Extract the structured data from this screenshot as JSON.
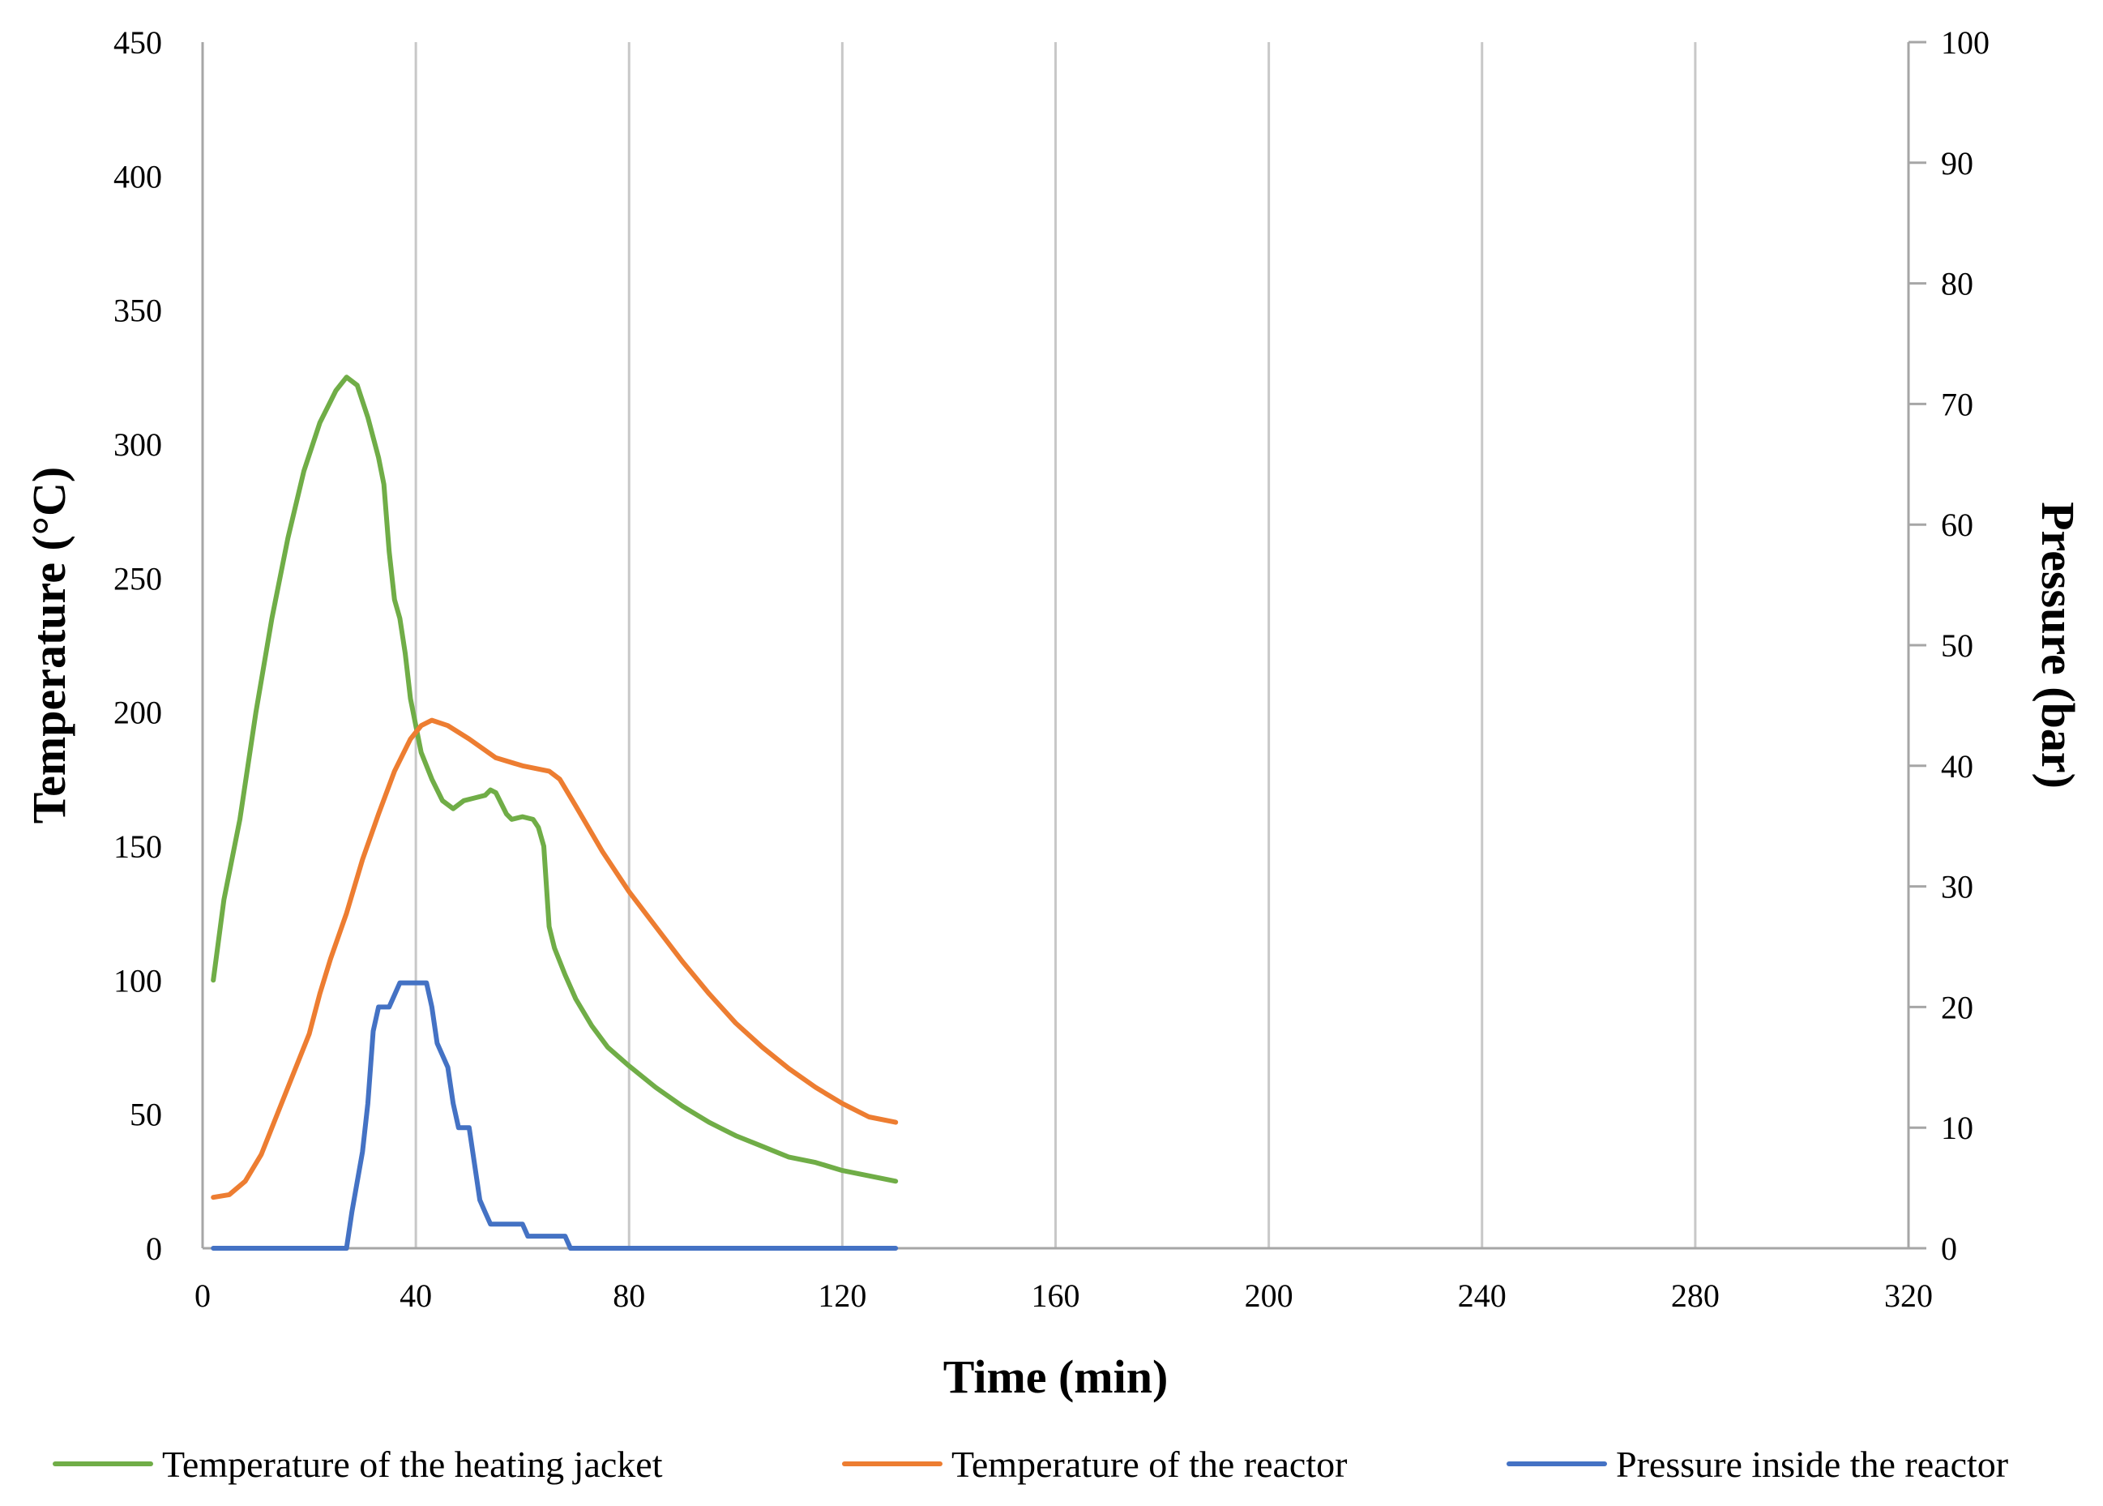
{
  "chart_data": {
    "type": "line",
    "title": "",
    "xlabel": "Time (min)",
    "ylabel": "Temperature (°C)",
    "y2label": "Pressure (bar)",
    "xlim": [
      0,
      320
    ],
    "ylim": [
      0,
      450
    ],
    "y2lim": [
      0,
      100
    ],
    "x_ticks": [
      0,
      40,
      80,
      120,
      160,
      200,
      240,
      280,
      320
    ],
    "y_ticks": [
      0,
      50,
      100,
      150,
      200,
      250,
      300,
      350,
      400,
      450
    ],
    "y2_ticks": [
      0,
      10,
      20,
      30,
      40,
      50,
      60,
      70,
      80,
      90,
      100
    ],
    "grid": "vertical",
    "legend_position": "bottom",
    "series": [
      {
        "name": "Temperature of the heating jacket",
        "axis": "left",
        "color": "#70ad47",
        "points": [
          [
            2,
            100
          ],
          [
            4,
            130
          ],
          [
            7,
            160
          ],
          [
            10,
            200
          ],
          [
            13,
            235
          ],
          [
            16,
            265
          ],
          [
            19,
            290
          ],
          [
            22,
            308
          ],
          [
            25,
            320
          ],
          [
            27,
            325
          ],
          [
            29,
            322
          ],
          [
            31,
            310
          ],
          [
            33,
            295
          ],
          [
            34,
            285
          ],
          [
            35,
            260
          ],
          [
            36,
            242
          ],
          [
            37,
            235
          ],
          [
            38,
            222
          ],
          [
            39,
            205
          ],
          [
            40,
            195
          ],
          [
            41,
            185
          ],
          [
            43,
            175
          ],
          [
            45,
            167
          ],
          [
            47,
            164
          ],
          [
            49,
            167
          ],
          [
            51,
            168
          ],
          [
            53,
            169
          ],
          [
            54,
            171
          ],
          [
            55,
            170
          ],
          [
            57,
            162
          ],
          [
            58,
            160
          ],
          [
            60,
            161
          ],
          [
            62,
            160
          ],
          [
            63,
            157
          ],
          [
            64,
            150
          ],
          [
            65,
            120
          ],
          [
            66,
            112
          ],
          [
            68,
            102
          ],
          [
            70,
            93
          ],
          [
            73,
            83
          ],
          [
            76,
            75
          ],
          [
            80,
            68
          ],
          [
            85,
            60
          ],
          [
            90,
            53
          ],
          [
            95,
            47
          ],
          [
            100,
            42
          ],
          [
            105,
            38
          ],
          [
            110,
            34
          ],
          [
            115,
            32
          ],
          [
            120,
            29
          ],
          [
            125,
            27
          ],
          [
            130,
            25
          ]
        ]
      },
      {
        "name": "Temperature of the reactor",
        "axis": "left",
        "color": "#ed7d31",
        "points": [
          [
            2,
            19
          ],
          [
            5,
            20
          ],
          [
            8,
            25
          ],
          [
            11,
            35
          ],
          [
            14,
            50
          ],
          [
            17,
            65
          ],
          [
            20,
            80
          ],
          [
            22,
            95
          ],
          [
            24,
            108
          ],
          [
            27,
            125
          ],
          [
            30,
            145
          ],
          [
            33,
            162
          ],
          [
            36,
            178
          ],
          [
            39,
            190
          ],
          [
            41,
            195
          ],
          [
            43,
            197
          ],
          [
            46,
            195
          ],
          [
            50,
            190
          ],
          [
            55,
            183
          ],
          [
            60,
            180
          ],
          [
            65,
            178
          ],
          [
            67,
            175
          ],
          [
            70,
            165
          ],
          [
            75,
            148
          ],
          [
            80,
            133
          ],
          [
            85,
            120
          ],
          [
            90,
            107
          ],
          [
            95,
            95
          ],
          [
            100,
            84
          ],
          [
            105,
            75
          ],
          [
            110,
            67
          ],
          [
            115,
            60
          ],
          [
            120,
            54
          ],
          [
            125,
            49
          ],
          [
            130,
            47
          ]
        ]
      },
      {
        "name": "Pressure inside the reactor",
        "axis": "right",
        "color": "#4472c4",
        "points": [
          [
            2,
            0
          ],
          [
            26,
            0
          ],
          [
            27,
            0
          ],
          [
            28,
            3
          ],
          [
            30,
            8
          ],
          [
            31,
            12
          ],
          [
            32,
            18
          ],
          [
            33,
            20
          ],
          [
            34,
            20
          ],
          [
            35,
            20
          ],
          [
            36,
            21
          ],
          [
            37,
            22
          ],
          [
            39,
            22
          ],
          [
            40,
            22
          ],
          [
            41,
            22
          ],
          [
            42,
            22
          ],
          [
            43,
            20
          ],
          [
            44,
            17
          ],
          [
            46,
            15
          ],
          [
            47,
            12
          ],
          [
            48,
            10
          ],
          [
            50,
            10
          ],
          [
            51,
            7
          ],
          [
            52,
            4
          ],
          [
            53,
            3
          ],
          [
            54,
            2
          ],
          [
            56,
            2
          ],
          [
            58,
            2
          ],
          [
            60,
            2
          ],
          [
            61,
            1
          ],
          [
            63,
            1
          ],
          [
            65,
            1
          ],
          [
            67,
            1
          ],
          [
            68,
            1
          ],
          [
            69,
            0
          ],
          [
            70,
            0
          ],
          [
            130,
            0
          ]
        ]
      }
    ]
  }
}
